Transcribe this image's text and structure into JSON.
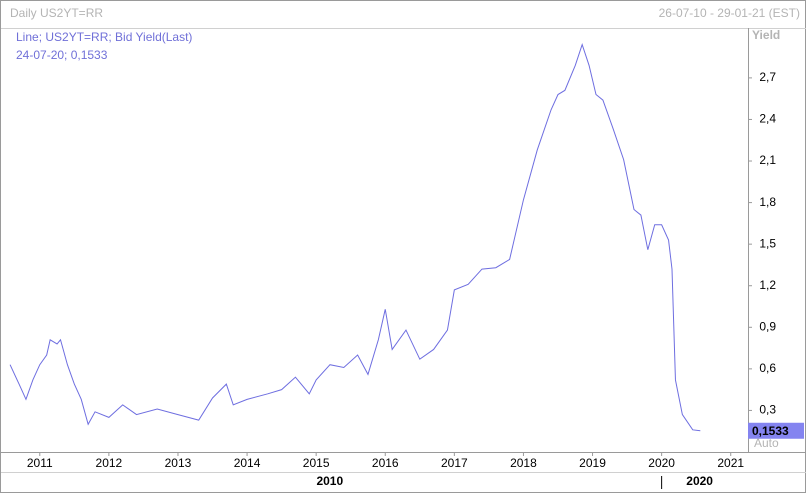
{
  "chart_data": {
    "type": "line",
    "title": "Daily US2YT=RR",
    "subtitle": "26-07-10 - 29-01-21 (EST)",
    "legend_lines": [
      "Line; US2YT=RR; Bid Yield(Last)",
      "24-07-20; 0,1533"
    ],
    "y_label": "Yield",
    "scale_mode": "Auto",
    "last_label": "0,1533",
    "period_labels": [
      {
        "value": 2010,
        "label": "2010"
      },
      {
        "value": 2020,
        "label": "2020"
      }
    ],
    "x": [
      2010.57,
      2010.7,
      2010.8,
      2010.9,
      2011.0,
      2011.1,
      2011.15,
      2011.25,
      2011.3,
      2011.4,
      2011.5,
      2011.6,
      2011.7,
      2011.8,
      2012.0,
      2012.2,
      2012.4,
      2012.7,
      2013.0,
      2013.3,
      2013.5,
      2013.7,
      2013.8,
      2014.0,
      2014.3,
      2014.5,
      2014.7,
      2014.9,
      2015.0,
      2015.2,
      2015.4,
      2015.6,
      2015.75,
      2015.9,
      2016.0,
      2016.1,
      2016.3,
      2016.5,
      2016.7,
      2016.9,
      2017.0,
      2017.2,
      2017.4,
      2017.6,
      2017.8,
      2018.0,
      2018.2,
      2018.4,
      2018.5,
      2018.6,
      2018.75,
      2018.85,
      2018.95,
      2019.05,
      2019.15,
      2019.3,
      2019.45,
      2019.6,
      2019.7,
      2019.8,
      2019.9,
      2020.0,
      2020.1,
      2020.15,
      2020.2,
      2020.3,
      2020.45,
      2020.56
    ],
    "series": [
      {
        "name": "Bid Yield(Last)",
        "color": "#6e6ee0",
        "values": [
          0.63,
          0.49,
          0.38,
          0.52,
          0.63,
          0.7,
          0.81,
          0.78,
          0.81,
          0.63,
          0.49,
          0.38,
          0.2,
          0.29,
          0.25,
          0.34,
          0.27,
          0.31,
          0.27,
          0.23,
          0.39,
          0.49,
          0.34,
          0.38,
          0.42,
          0.45,
          0.54,
          0.42,
          0.52,
          0.63,
          0.61,
          0.7,
          0.56,
          0.81,
          1.03,
          0.74,
          0.88,
          0.67,
          0.74,
          0.88,
          1.17,
          1.21,
          1.32,
          1.33,
          1.39,
          1.82,
          2.18,
          2.47,
          2.58,
          2.61,
          2.79,
          2.94,
          2.79,
          2.58,
          2.54,
          2.33,
          2.11,
          1.75,
          1.71,
          1.46,
          1.64,
          1.64,
          1.53,
          1.32,
          0.52,
          0.27,
          0.16,
          0.1533
        ]
      }
    ],
    "xlim": [
      2010.54,
      2021.25
    ],
    "xticks": [
      2011,
      2012,
      2013,
      2014,
      2015,
      2016,
      2017,
      2018,
      2019,
      2020,
      2021
    ],
    "ylim": [
      0.0,
      3.06
    ],
    "yticks": [
      {
        "value": 0.3,
        "label": "0,3"
      },
      {
        "value": 0.6,
        "label": "0,6"
      },
      {
        "value": 0.9,
        "label": "0,9"
      },
      {
        "value": 1.2,
        "label": "1,2"
      },
      {
        "value": 1.5,
        "label": "1,5"
      },
      {
        "value": 1.8,
        "label": "1,8"
      },
      {
        "value": 2.1,
        "label": "2,1"
      },
      {
        "value": 2.4,
        "label": "2,4"
      },
      {
        "value": 2.7,
        "label": "2,7"
      }
    ],
    "grid": false
  }
}
